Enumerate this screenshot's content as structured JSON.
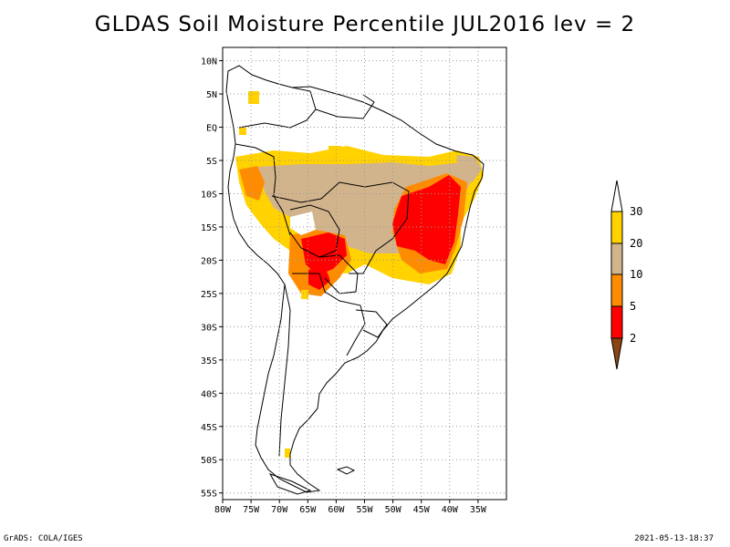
{
  "title": "GLDAS Soil Moisture Percentile JUL2016 lev = 2",
  "map": {
    "lon_labels": [
      "80W",
      "75W",
      "70W",
      "65W",
      "60W",
      "55W",
      "50W",
      "45W",
      "40W",
      "35W"
    ],
    "lat_labels": [
      "10N",
      "5N",
      "EQ",
      "5S",
      "10S",
      "15S",
      "20S",
      "25S",
      "30S",
      "35S",
      "40S",
      "45S",
      "50S",
      "55S"
    ],
    "lon_range": [
      -80,
      -30
    ],
    "lat_range": [
      -56,
      12
    ],
    "grid_lines": true
  },
  "colorbar": {
    "labels": [
      "30",
      "20",
      "10",
      "5",
      "2"
    ],
    "colors": {
      "above_30": "#ffffff",
      "c20_30": "#ffd200",
      "c10_20": "#d2b48c",
      "c5_10": "#ff8c00",
      "c2_5": "#ff0000",
      "below_2": "#8b4513"
    }
  },
  "footer": {
    "left": "GrADS: COLA/IGES",
    "right": "2021-05-13-18:37"
  }
}
